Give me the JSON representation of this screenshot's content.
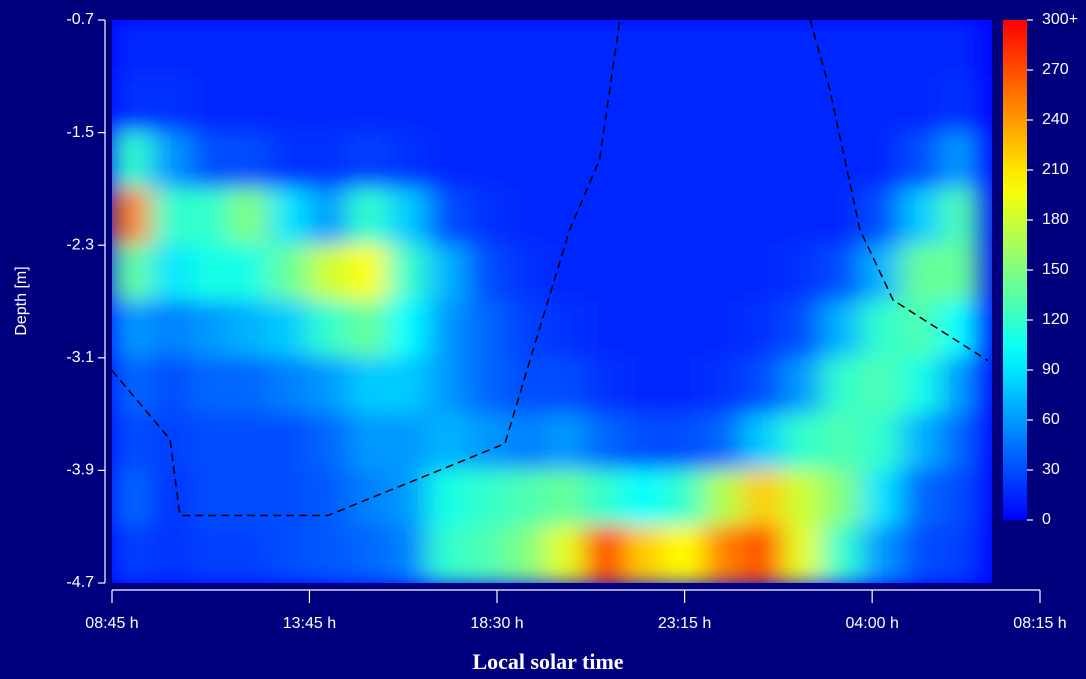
{
  "chart_data": {
    "type": "heatmap",
    "x_label": "Local solar time",
    "y_label": "Depth [m]",
    "xlim": [
      0,
      23.5
    ],
    "xticks": [
      {
        "value": 0,
        "label": "08:45 h"
      },
      {
        "value": 5,
        "label": "13:45 h"
      },
      {
        "value": 9.75,
        "label": "18:30 h"
      },
      {
        "value": 14.5,
        "label": "23:15 h"
      },
      {
        "value": 19.25,
        "label": "04:00 h"
      },
      {
        "value": 23.5,
        "label": "08:15 h"
      }
    ],
    "ylim": [
      -4.7,
      -0.7
    ],
    "yticks": [
      -0.7,
      -1.5,
      -2.3,
      -3.1,
      -3.9,
      -4.7
    ],
    "heatmap": {
      "x": [
        0.5,
        1.5,
        2.5,
        3.5,
        4.5,
        5.5,
        6.5,
        7.5,
        8.5,
        9.5,
        10.5,
        11.5,
        12.5,
        13.5,
        14.5,
        15.5,
        16.5,
        17.5,
        18.5,
        19.5,
        20.5,
        21.5
      ],
      "y": [
        -0.9,
        -1.3,
        -1.7,
        -2.1,
        -2.5,
        -2.9,
        -3.3,
        -3.7,
        -4.1,
        -4.5
      ],
      "values": [
        [
          15,
          15,
          15,
          15,
          15,
          15,
          15,
          15,
          15,
          15,
          15,
          15,
          15,
          15,
          15,
          15,
          15,
          15,
          15,
          15,
          15,
          15
        ],
        [
          20,
          20,
          15,
          15,
          15,
          15,
          15,
          15,
          15,
          15,
          15,
          15,
          15,
          15,
          15,
          15,
          15,
          15,
          15,
          15,
          15,
          20
        ],
        [
          120,
          60,
          30,
          30,
          20,
          20,
          25,
          20,
          15,
          15,
          15,
          15,
          15,
          15,
          15,
          15,
          15,
          15,
          15,
          15,
          30,
          60
        ],
        [
          250,
          120,
          120,
          150,
          90,
          60,
          120,
          80,
          30,
          20,
          15,
          15,
          15,
          15,
          15,
          15,
          15,
          15,
          15,
          30,
          80,
          130
        ],
        [
          140,
          90,
          110,
          110,
          140,
          180,
          200,
          120,
          70,
          30,
          20,
          15,
          15,
          15,
          15,
          15,
          15,
          20,
          30,
          70,
          140,
          140
        ],
        [
          60,
          50,
          60,
          70,
          80,
          120,
          140,
          100,
          60,
          40,
          25,
          20,
          15,
          15,
          15,
          15,
          20,
          30,
          70,
          120,
          130,
          100
        ],
        [
          40,
          30,
          40,
          40,
          50,
          60,
          80,
          80,
          60,
          40,
          30,
          30,
          20,
          15,
          15,
          20,
          30,
          60,
          120,
          130,
          110,
          60
        ],
        [
          30,
          25,
          30,
          30,
          30,
          40,
          60,
          60,
          70,
          60,
          50,
          60,
          40,
          30,
          30,
          40,
          80,
          120,
          130,
          120,
          70,
          40
        ],
        [
          40,
          20,
          30,
          30,
          30,
          35,
          50,
          60,
          110,
          120,
          130,
          140,
          120,
          100,
          120,
          170,
          220,
          180,
          150,
          90,
          40,
          30
        ],
        [
          25,
          20,
          25,
          25,
          30,
          35,
          40,
          50,
          120,
          130,
          150,
          190,
          280,
          220,
          200,
          250,
          270,
          190,
          120,
          60,
          30,
          25
        ]
      ]
    },
    "line": {
      "color": "#000000",
      "x": [
        0,
        1.47,
        1.72,
        5.47,
        9.95,
        10.58,
        11.59,
        12.35,
        12.86,
        null,
        17.68,
        18.18,
        18.94,
        19.78,
        22.18
      ],
      "y": [
        -3.19,
        -3.68,
        -4.22,
        -4.22,
        -3.71,
        -3.12,
        -2.19,
        -1.69,
        -0.7,
        null,
        -0.7,
        -1.2,
        -2.19,
        -2.69,
        -3.12
      ]
    },
    "colorbar": {
      "lim": [
        0,
        300
      ],
      "ticks": [
        0,
        30,
        60,
        90,
        120,
        150,
        180,
        210,
        240,
        270,
        {
          "value": 300,
          "label": "300+"
        }
      ]
    }
  }
}
